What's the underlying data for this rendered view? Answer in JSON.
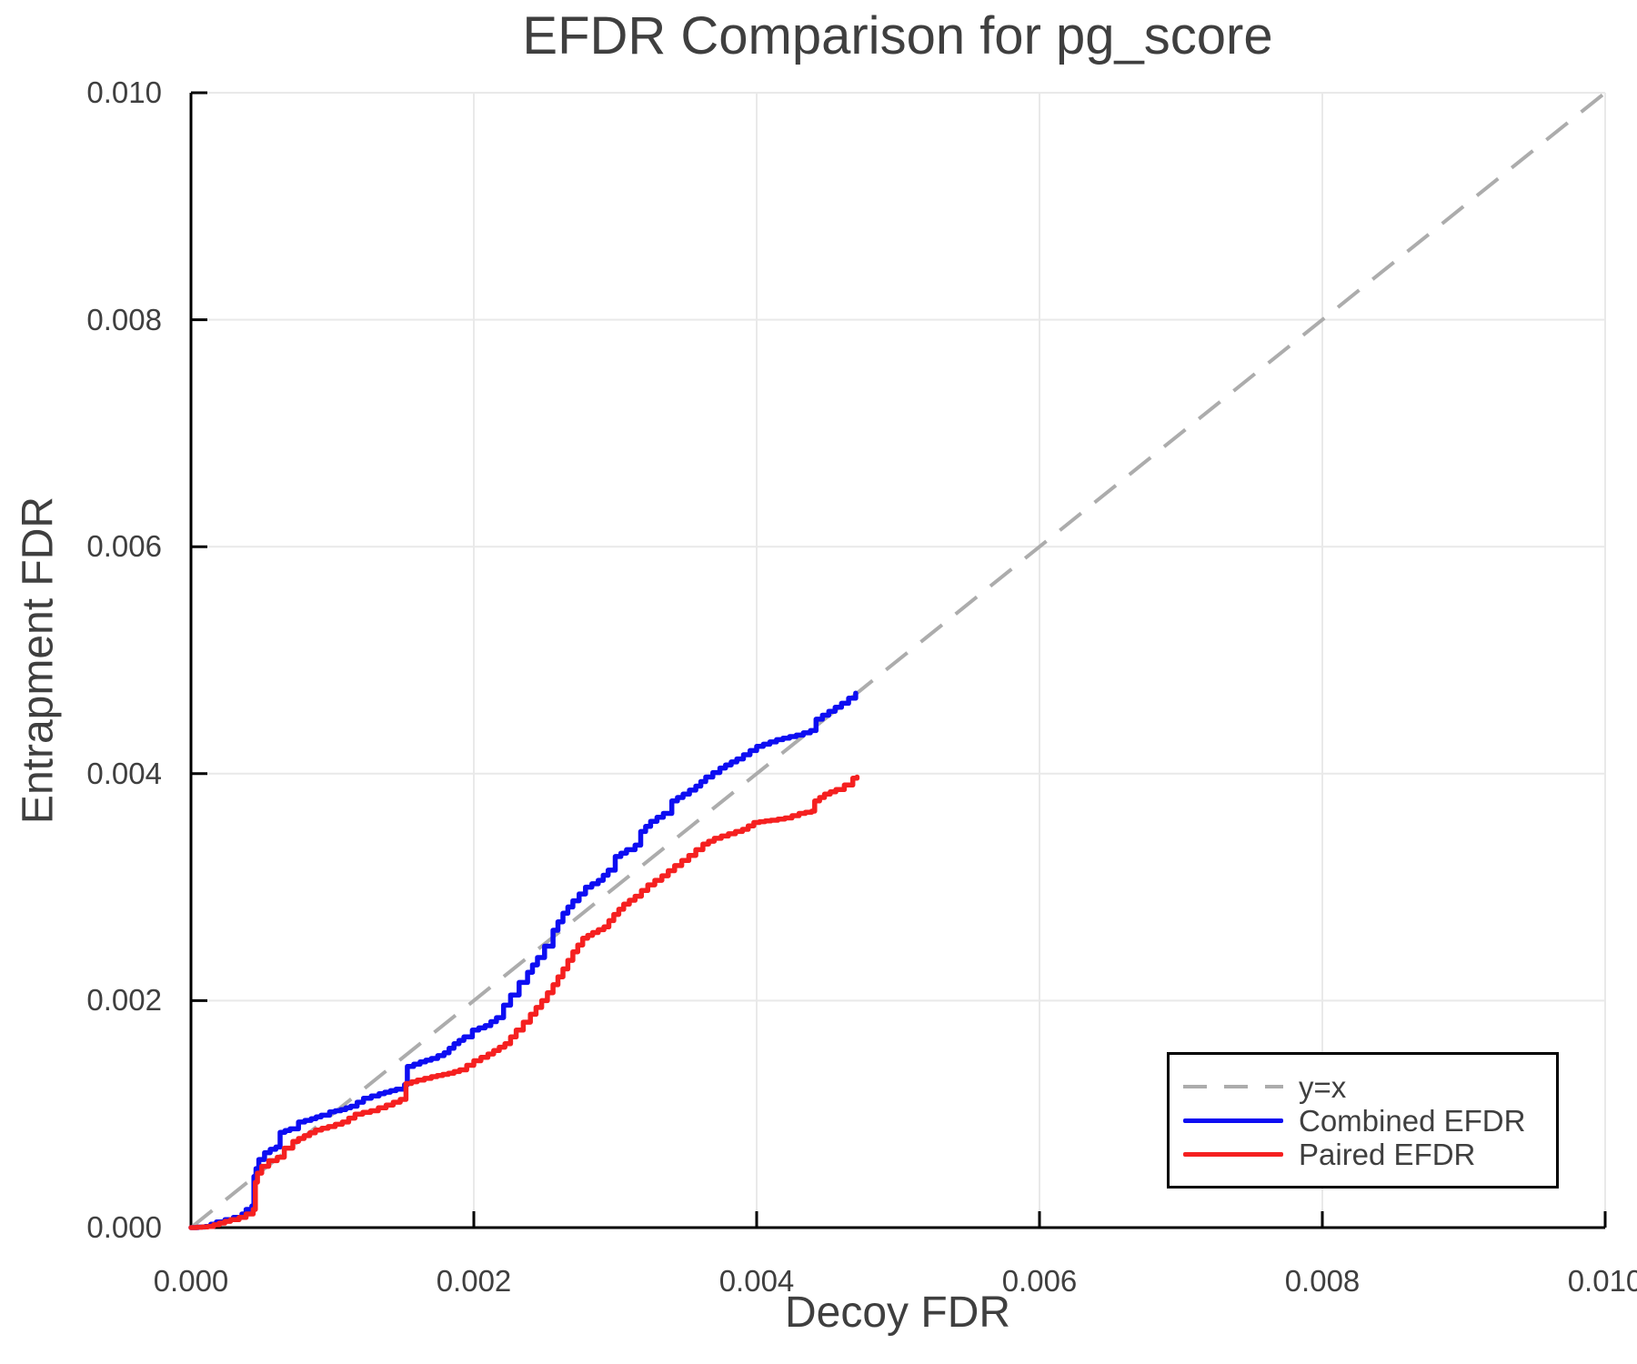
{
  "title": "EFDR Comparison for pg_score",
  "axes": {
    "xlabel": "Decoy FDR",
    "ylabel": "Entrapment FDR",
    "xtick_labels": [
      "0.000",
      "0.002",
      "0.004",
      "0.006",
      "0.008",
      "0.010"
    ],
    "ytick_labels": [
      "0.000",
      "0.002",
      "0.004",
      "0.006",
      "0.008",
      "0.010"
    ]
  },
  "legend": {
    "position": "lower right",
    "items": [
      {
        "label": "y=x",
        "color": "#ACACAC",
        "style": "dashed"
      },
      {
        "label": "Combined EFDR",
        "color": "#0D0DF2",
        "style": "solid"
      },
      {
        "label": "Paired EFDR",
        "color": "#F52020",
        "style": "solid"
      }
    ]
  },
  "colors": {
    "text": "#3F3F3F",
    "axis": "#000000",
    "grid": "#E9E9E9",
    "diagonal": "#ACACAC",
    "combined": "#0D0DF2",
    "paired": "#F52020"
  },
  "chart_data": {
    "type": "line",
    "title": "EFDR Comparison for pg_score",
    "xlabel": "Decoy FDR",
    "ylabel": "Entrapment FDR",
    "xlim": [
      0.0,
      0.01
    ],
    "ylim": [
      0.0,
      0.01
    ],
    "xticks": [
      0.0,
      0.002,
      0.004,
      0.006,
      0.008,
      0.01
    ],
    "yticks": [
      0.0,
      0.002,
      0.004,
      0.006,
      0.008,
      0.01
    ],
    "grid": true,
    "legend_position": "lower right",
    "series": [
      {
        "name": "y=x",
        "style": "dashed",
        "color": "#ACACAC",
        "points": [
          [
            0.0,
            0.0
          ],
          [
            0.01,
            0.01
          ]
        ]
      },
      {
        "name": "Combined EFDR",
        "style": "step",
        "color": "#0D0DF2",
        "points": [
          [
            0.0,
            0.0
          ],
          [
            0.0001,
            1e-05
          ],
          [
            0.00018,
            5e-05
          ],
          [
            0.00024,
            7e-05
          ],
          [
            0.0003,
            9e-05
          ],
          [
            0.00036,
            0.00012
          ],
          [
            0.00039,
            0.00016
          ],
          [
            0.00043,
            0.00019
          ],
          [
            0.000445,
            0.00045
          ],
          [
            0.00046,
            0.00052
          ],
          [
            0.00048,
            0.0006
          ],
          [
            0.00052,
            0.00066
          ],
          [
            0.00056,
            0.00069
          ],
          [
            0.0006,
            0.00071
          ],
          [
            0.00063,
            0.00084
          ],
          [
            0.0007,
            0.00087
          ],
          [
            0.00076,
            0.00093
          ],
          [
            0.00085,
            0.00096
          ],
          [
            0.00092,
            0.00099
          ],
          [
            0.00098,
            0.00102
          ],
          [
            0.00106,
            0.00104
          ],
          [
            0.00113,
            0.00107
          ],
          [
            0.00122,
            0.00114
          ],
          [
            0.00133,
            0.00118
          ],
          [
            0.00145,
            0.00122
          ],
          [
            0.00151,
            0.00126
          ],
          [
            0.00153,
            0.00142
          ],
          [
            0.00162,
            0.00146
          ],
          [
            0.0017,
            0.00149
          ],
          [
            0.00179,
            0.00154
          ],
          [
            0.00186,
            0.00162
          ],
          [
            0.00193,
            0.00168
          ],
          [
            0.00199,
            0.00174
          ],
          [
            0.00208,
            0.00178
          ],
          [
            0.00216,
            0.00185
          ],
          [
            0.00221,
            0.00196
          ],
          [
            0.00226,
            0.00205
          ],
          [
            0.00232,
            0.00216
          ],
          [
            0.00238,
            0.00225
          ],
          [
            0.00245,
            0.00238
          ],
          [
            0.0025,
            0.00248
          ],
          [
            0.00256,
            0.00262
          ],
          [
            0.00263,
            0.00277
          ],
          [
            0.0027,
            0.00288
          ],
          [
            0.00279,
            0.003
          ],
          [
            0.00288,
            0.00306
          ],
          [
            0.00295,
            0.00315
          ],
          [
            0.003,
            0.00327
          ],
          [
            0.00308,
            0.00333
          ],
          [
            0.00314,
            0.00337
          ],
          [
            0.00318,
            0.00349
          ],
          [
            0.00325,
            0.00358
          ],
          [
            0.00334,
            0.00365
          ],
          [
            0.0034,
            0.00376
          ],
          [
            0.00348,
            0.00382
          ],
          [
            0.00357,
            0.00389
          ],
          [
            0.00364,
            0.00397
          ],
          [
            0.00374,
            0.00405
          ],
          [
            0.00386,
            0.00413
          ],
          [
            0.004,
            0.00424
          ],
          [
            0.00414,
            0.0043
          ],
          [
            0.00428,
            0.00434
          ],
          [
            0.00438,
            0.00438
          ],
          [
            0.00442,
            0.00448
          ],
          [
            0.00451,
            0.00455
          ],
          [
            0.0046,
            0.00462
          ],
          [
            0.0047,
            0.00471
          ]
        ]
      },
      {
        "name": "Paired EFDR",
        "style": "step",
        "color": "#F52020",
        "points": [
          [
            0.0,
            0.0
          ],
          [
            0.00012,
            1e-05
          ],
          [
            0.0002,
            4e-05
          ],
          [
            0.00028,
            7e-05
          ],
          [
            0.00034,
            9e-05
          ],
          [
            0.00039,
            0.00012
          ],
          [
            0.00044,
            0.00016
          ],
          [
            0.000455,
            0.0004
          ],
          [
            0.00047,
            0.00048
          ],
          [
            0.0005,
            0.00054
          ],
          [
            0.00055,
            0.00059
          ],
          [
            0.00061,
            0.00062
          ],
          [
            0.00066,
            0.0007
          ],
          [
            0.00072,
            0.00076
          ],
          [
            0.0008,
            0.00081
          ],
          [
            0.00088,
            0.00086
          ],
          [
            0.00097,
            0.00089
          ],
          [
            0.00107,
            0.00093
          ],
          [
            0.00116,
            0.001
          ],
          [
            0.00127,
            0.00103
          ],
          [
            0.00138,
            0.00108
          ],
          [
            0.00148,
            0.00113
          ],
          [
            0.00152,
            0.00127
          ],
          [
            0.0016,
            0.0013
          ],
          [
            0.0017,
            0.00133
          ],
          [
            0.00182,
            0.00136
          ],
          [
            0.0019,
            0.00139
          ],
          [
            0.002,
            0.00147
          ],
          [
            0.0021,
            0.00153
          ],
          [
            0.00222,
            0.00162
          ],
          [
            0.0023,
            0.00174
          ],
          [
            0.0024,
            0.00188
          ],
          [
            0.00248,
            0.002
          ],
          [
            0.00256,
            0.00214
          ],
          [
            0.00263,
            0.00228
          ],
          [
            0.0027,
            0.00243
          ],
          [
            0.00277,
            0.00255
          ],
          [
            0.00284,
            0.0026
          ],
          [
            0.00292,
            0.00265
          ],
          [
            0.00299,
            0.00276
          ],
          [
            0.00306,
            0.00285
          ],
          [
            0.00314,
            0.00292
          ],
          [
            0.00323,
            0.00302
          ],
          [
            0.00333,
            0.0031
          ],
          [
            0.00342,
            0.00319
          ],
          [
            0.00352,
            0.00328
          ],
          [
            0.00362,
            0.00338
          ],
          [
            0.0037,
            0.00343
          ],
          [
            0.0038,
            0.00347
          ],
          [
            0.0039,
            0.00351
          ],
          [
            0.00398,
            0.00357
          ],
          [
            0.0041,
            0.00359
          ],
          [
            0.0042,
            0.00361
          ],
          [
            0.0043,
            0.00365
          ],
          [
            0.00439,
            0.00367
          ],
          [
            0.00441,
            0.00376
          ],
          [
            0.00448,
            0.00382
          ],
          [
            0.00456,
            0.00386
          ],
          [
            0.00462,
            0.0039
          ],
          [
            0.00468,
            0.00396
          ],
          [
            0.00471,
            0.00397
          ]
        ]
      }
    ]
  }
}
